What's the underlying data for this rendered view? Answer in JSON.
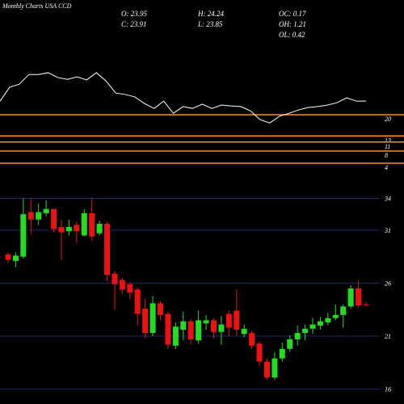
{
  "chart_data": [
    {
      "type": "line",
      "title": "Monthly Charts USA CCD",
      "info": [
        "O: 23.95",
        "H: 24.24",
        "OC: 0.17",
        "C: 23.91",
        "L: 23.85",
        "OH: 1.21",
        "OL: 0.42"
      ],
      "values": [
        24.5,
        29.1,
        30.1,
        33.3,
        33.3,
        33.9,
        32.3,
        31.7,
        32.5,
        31.5,
        33.9,
        31.2,
        27.2,
        26.7,
        25.9,
        23.7,
        22.1,
        24.5,
        20.5,
        22.7,
        22.1,
        23.5,
        22.1,
        23.2,
        22.9,
        22.7,
        21.3,
        18.4,
        17.3,
        19.5,
        20.5,
        21.6,
        22.4,
        22.7,
        23.2,
        24.0,
        25.6,
        24.5,
        24.5
      ],
      "color": "#ffffff",
      "level_color": "#ff8c1a",
      "ylim": [
        -4.8,
        57.9
      ],
      "yticks": [
        20,
        13,
        11,
        8,
        4
      ]
    },
    {
      "type": "candlestick",
      "open": [
        28.7,
        28.1,
        28.5,
        32.7,
        32.0,
        32.6,
        33.0,
        31.3,
        30.9,
        31.5,
        30.5,
        32.6,
        30.7,
        31.6,
        26.9,
        26.3,
        25.9,
        25.4,
        23.6,
        21.3,
        24.1,
        23.1,
        20.1,
        21.6,
        22.4,
        20.6,
        22.2,
        22.5,
        21.4,
        23.1,
        23.4,
        21.2,
        21.3,
        20.3,
        18.6,
        17.1,
        18.9,
        19.8,
        20.7,
        21.3,
        21.7,
        22.0,
        22.3,
        22.7,
        23.0,
        23.8,
        25.5,
        24.0
      ],
      "high": [
        28.9,
        28.9,
        34.0,
        34.0,
        33.5,
        33.8,
        33.0,
        32.0,
        32.0,
        31.8,
        33.0,
        34.0,
        31.9,
        31.8,
        27.1,
        26.5,
        26.1,
        25.6,
        24.5,
        24.8,
        24.3,
        23.3,
        22.3,
        23.3,
        22.6,
        23.4,
        23.0,
        22.7,
        22.9,
        23.4,
        25.4,
        22.1,
        21.5,
        20.5,
        18.9,
        19.5,
        20.4,
        21.1,
        22.0,
        22.1,
        22.7,
        22.8,
        23.2,
        24.0,
        24.0,
        25.8,
        26.3,
        24.24
      ],
      "low": [
        27.9,
        27.5,
        28.3,
        30.6,
        31.5,
        32.3,
        30.8,
        28.2,
        30.5,
        29.8,
        30.4,
        30.0,
        30.5,
        26.2,
        23.5,
        25.0,
        24.5,
        22.0,
        20.8,
        21.0,
        22.5,
        19.8,
        19.8,
        20.6,
        20.2,
        20.3,
        21.6,
        20.8,
        20.2,
        21.0,
        21.0,
        20.9,
        19.8,
        18.2,
        16.9,
        16.9,
        18.6,
        19.5,
        20.1,
        20.6,
        21.2,
        21.6,
        22.0,
        22.5,
        21.8,
        23.6,
        23.7,
        23.85
      ],
      "close": [
        28.2,
        28.6,
        32.5,
        32.0,
        32.7,
        33.0,
        31.1,
        30.8,
        31.3,
        30.9,
        32.6,
        30.4,
        31.6,
        26.8,
        25.9,
        25.4,
        25.1,
        23.1,
        21.3,
        24.1,
        23.0,
        20.2,
        21.9,
        22.4,
        20.7,
        22.5,
        22.5,
        21.4,
        22.1,
        21.8,
        21.6,
        21.7,
        20.1,
        18.6,
        17.1,
        18.9,
        19.8,
        20.7,
        21.3,
        21.7,
        22.1,
        22.4,
        22.7,
        23.0,
        23.8,
        25.5,
        23.9,
        23.91
      ],
      "up_color": "#22dd22",
      "down_color": "#ee1111",
      "grid_color": "#1a2a70",
      "ylim": [
        14.6,
        34.8
      ],
      "yticks": [
        34,
        31,
        26,
        21,
        16
      ]
    }
  ]
}
